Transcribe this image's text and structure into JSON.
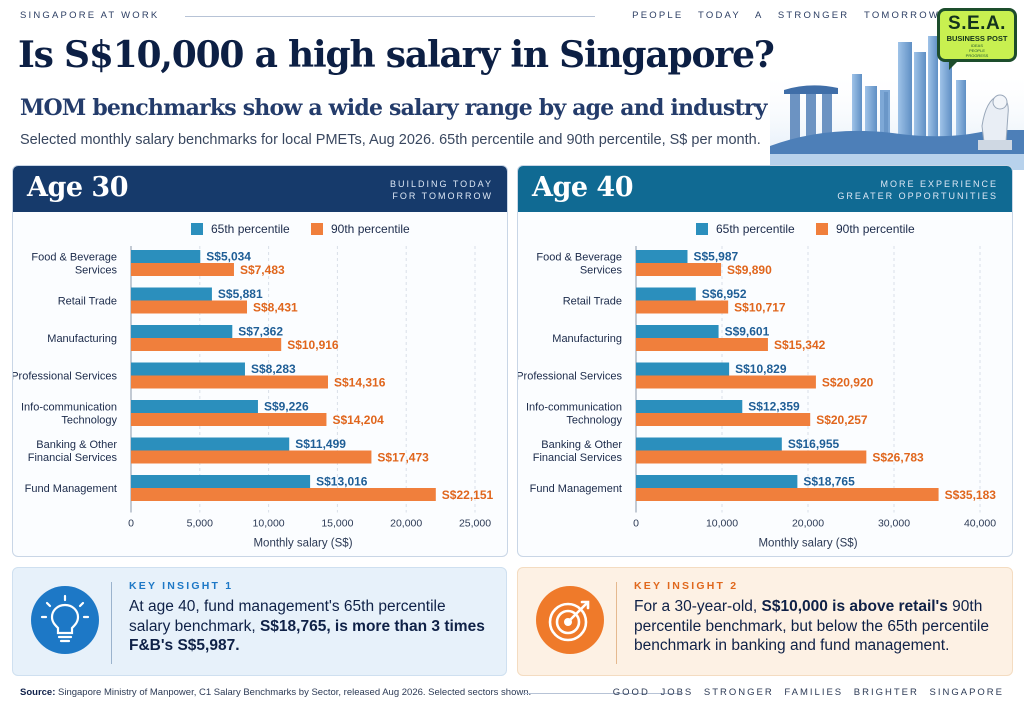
{
  "header": {
    "kicker_left": "SINGAPORE AT WORK",
    "tagline": "PEOPLE TODAY A STRONGER TOMORROW",
    "title": "Is S$10,000 a high salary in Singapore?",
    "subtitle": "MOM benchmarks show a wide salary range by age and industry",
    "description": "Selected monthly salary benchmarks for local PMETs, Aug 2026. 65th percentile and 90th percentile, S$ per month."
  },
  "logo": {
    "line1": "S.E.A.",
    "line2": "BUSINESS POST",
    "line3a": "IDEAS",
    "line3b": "PEOPLE",
    "line3c": "PROGRESS"
  },
  "colors": {
    "p65": "#2b8fbd",
    "p90": "#f07f3c",
    "p65_label": "#1f5e96",
    "p90_label": "#e0661d",
    "grid": "#d9dfe8"
  },
  "legend": {
    "p65": "65th percentile",
    "p90": "90th percentile"
  },
  "panels": [
    {
      "title": "Age 30",
      "kicker_line1": "BUILDING TODAY",
      "kicker_line2": "FOR TOMORROW"
    },
    {
      "title": "Age 40",
      "kicker_line1": "MORE EXPERIENCE",
      "kicker_line2": "GREATER OPPORTUNITIES"
    }
  ],
  "chart_data": [
    {
      "type": "bar",
      "orientation": "horizontal",
      "title": "Age 30",
      "categories": [
        [
          "Food & Beverage",
          "Services"
        ],
        [
          "Retail Trade"
        ],
        [
          "Manufacturing"
        ],
        [
          "Professional Services"
        ],
        [
          "Info-communication",
          "Technology"
        ],
        [
          "Banking & Other",
          "Financial Services"
        ],
        [
          "Fund Management"
        ]
      ],
      "series": [
        {
          "name": "65th percentile",
          "values": [
            5034,
            5881,
            7362,
            8283,
            9226,
            11499,
            13016
          ],
          "labels": [
            "S$5,034",
            "S$5,881",
            "S$7,362",
            "S$8,283",
            "S$9,226",
            "S$11,499",
            "S$13,016"
          ]
        },
        {
          "name": "90th percentile",
          "values": [
            7483,
            8431,
            10916,
            14316,
            14204,
            17473,
            22151
          ],
          "labels": [
            "S$7,483",
            "S$8,431",
            "S$10,916",
            "S$14,316",
            "S$14,204",
            "S$17,473",
            "S$22,151"
          ]
        }
      ],
      "xlim": [
        0,
        25000
      ],
      "xticks": [
        0,
        5000,
        10000,
        15000,
        20000,
        25000
      ],
      "xtick_labels": [
        "0",
        "5,000",
        "10,000",
        "15,000",
        "20,000",
        "25,000"
      ],
      "xlabel": "Monthly salary (S$)",
      "grid": "vertical dashed"
    },
    {
      "type": "bar",
      "orientation": "horizontal",
      "title": "Age 40",
      "categories": [
        [
          "Food & Beverage",
          "Services"
        ],
        [
          "Retail Trade"
        ],
        [
          "Manufacturing"
        ],
        [
          "Professional Services"
        ],
        [
          "Info-communication",
          "Technology"
        ],
        [
          "Banking & Other",
          "Financial Services"
        ],
        [
          "Fund Management"
        ]
      ],
      "series": [
        {
          "name": "65th percentile",
          "values": [
            5987,
            6952,
            9601,
            10829,
            12359,
            16955,
            18765
          ],
          "labels": [
            "S$5,987",
            "S$6,952",
            "S$9,601",
            "S$10,829",
            "S$12,359",
            "S$16,955",
            "S$18,765"
          ]
        },
        {
          "name": "90th percentile",
          "values": [
            9890,
            10717,
            15342,
            20920,
            20257,
            26783,
            35183
          ],
          "labels": [
            "S$9,890",
            "S$10,717",
            "S$15,342",
            "S$20,920",
            "S$20,257",
            "S$26,783",
            "S$35,183"
          ]
        }
      ],
      "xlim": [
        0,
        40000
      ],
      "xticks": [
        0,
        10000,
        20000,
        30000,
        40000
      ],
      "xtick_labels": [
        "0",
        "10,000",
        "20,000",
        "30,000",
        "40,000"
      ],
      "xlabel": "Monthly salary (S$)",
      "grid": "vertical dashed"
    }
  ],
  "insights": [
    {
      "label": "KEY INSIGHT 1",
      "icon": "lightbulb-icon",
      "segments": [
        {
          "text": "At age 40, fund management's 65th percentile salary benchmark, ",
          "bold": false
        },
        {
          "text": "S$18,765, is more than 3 times F&B's S$5,987.",
          "bold": true
        }
      ]
    },
    {
      "label": "KEY INSIGHT 2",
      "icon": "target-icon",
      "segments": [
        {
          "text": "For a 30-year-old, ",
          "bold": false
        },
        {
          "text": "S$10,000 is above retail's",
          "bold": true
        },
        {
          "text": " 90th percentile benchmark, but below the 65th percentile benchmark in banking and fund management.",
          "bold": false
        }
      ]
    }
  ],
  "footer": {
    "source_label": "Source:",
    "source_text": " Singapore Ministry of Manpower, C1 Salary Benchmarks by Sector, released Aug 2026. Selected sectors shown.",
    "tagline": "GOOD JOBS STRONGER FAMILIES BRIGHTER SINGAPORE"
  }
}
